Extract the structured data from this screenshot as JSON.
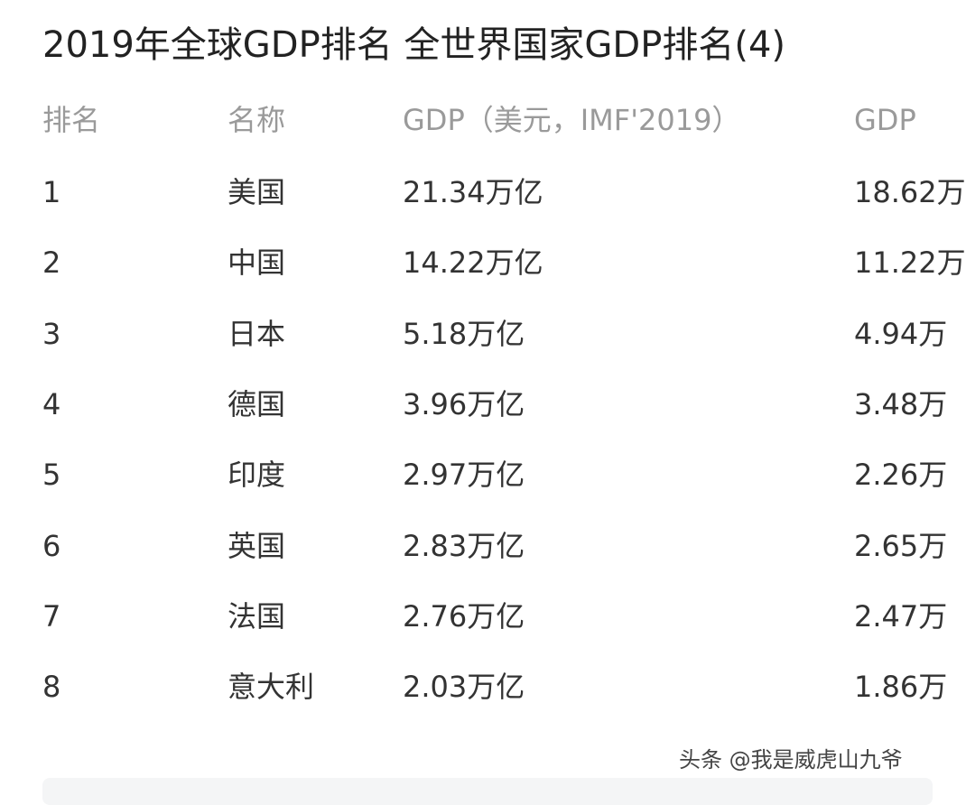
{
  "header": {
    "title": "2019年全球GDP排名 全世界国家GDP排名(4)"
  },
  "table": {
    "columns": [
      "排名",
      "名称",
      "GDP（美元，IMF'2019）",
      "GDP"
    ],
    "rows": [
      [
        "1",
        "美国",
        "21.34万亿",
        "18.62万"
      ],
      [
        "2",
        "中国",
        "14.22万亿",
        "11.22万"
      ],
      [
        "3",
        "日本",
        "5.18万亿",
        "4.94万"
      ],
      [
        "4",
        "德国",
        "3.96万亿",
        "3.48万"
      ],
      [
        "5",
        "印度",
        "2.97万亿",
        "2.26万"
      ],
      [
        "6",
        "英国",
        "2.83万亿",
        "2.65万"
      ],
      [
        "7",
        "法国",
        "2.76万亿",
        "2.47万"
      ],
      [
        "8",
        "意大利",
        "2.03万亿",
        "1.86万"
      ]
    ]
  },
  "watermark": "头条 @我是威虎山九爷"
}
